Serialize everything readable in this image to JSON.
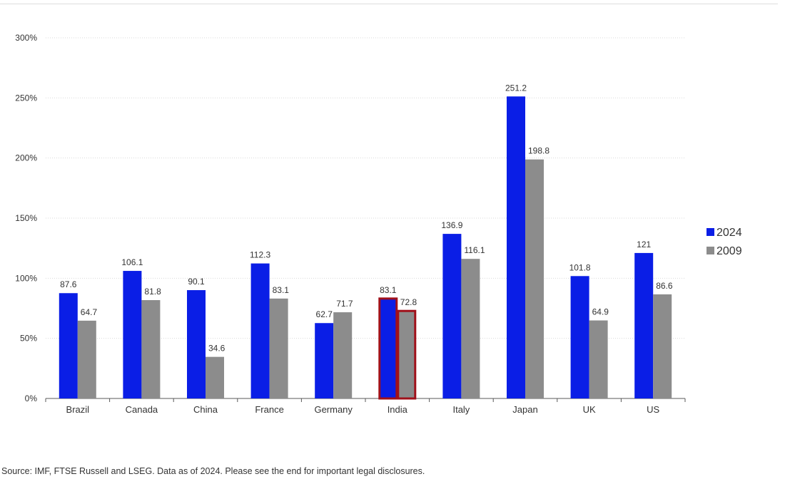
{
  "chart_data": {
    "type": "bar",
    "categories": [
      "Brazil",
      "Canada",
      "China",
      "France",
      "Germany",
      "India",
      "Italy",
      "Japan",
      "UK",
      "US"
    ],
    "series": [
      {
        "name": "2024",
        "color": "#0a1ee6",
        "values": [
          87.6,
          106.1,
          90.1,
          112.3,
          62.7,
          83.1,
          136.9,
          251.2,
          101.8,
          121
        ],
        "labels": [
          "87.6",
          "106.1",
          "90.1",
          "112.3",
          "62.7",
          "83.1",
          "136.9",
          "251.2",
          "101.8",
          "121"
        ]
      },
      {
        "name": "2009",
        "color": "#8c8c8c",
        "values": [
          64.7,
          81.8,
          34.6,
          83.1,
          71.7,
          72.8,
          116.1,
          198.8,
          64.9,
          86.6
        ],
        "labels": [
          "64.7",
          "81.8",
          "34.6",
          "83.1",
          "71.7",
          "72.8",
          "116.1",
          "198.8",
          "64.9",
          "86.6"
        ]
      }
    ],
    "highlight_category": "India",
    "highlight_color": "#a0101a",
    "ylim": [
      0,
      300
    ],
    "yticks": [
      0,
      50,
      100,
      150,
      200,
      250,
      300
    ],
    "ytick_labels": [
      "0%",
      "50%",
      "100%",
      "150%",
      "200%",
      "250%",
      "300%"
    ],
    "grid": true,
    "legend_position": "right",
    "xlabel": "",
    "ylabel": ""
  },
  "footer": {
    "source": "Source: IMF, FTSE Russell and LSEG. Data as of 2024. Please see the end for important legal disclosures."
  }
}
